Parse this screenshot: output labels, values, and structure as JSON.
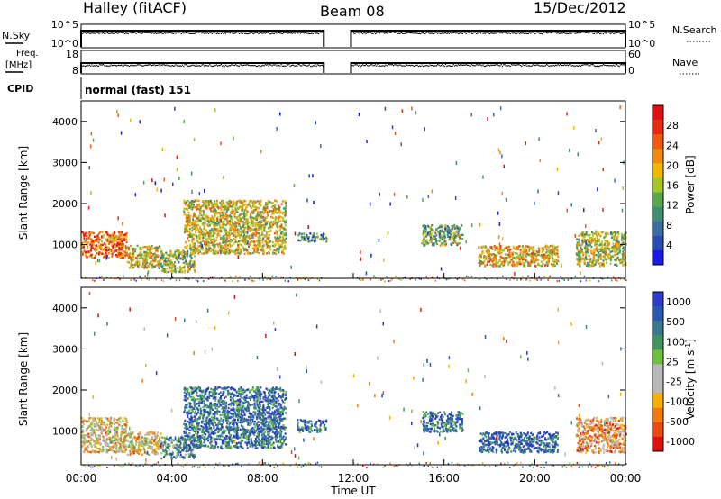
{
  "header": {
    "station": "Halley (fitACF)",
    "beam": "Beam 08",
    "date": "15/Dec/2012"
  },
  "strip_labels": {
    "nsky": "N.Sky",
    "nsky_ticks": [
      "10^5",
      "10^0"
    ],
    "nsearch": "N.Search",
    "nsearch_ticks": [
      "10^5",
      "10^0"
    ],
    "freq_line1": "Freq.",
    "freq_line2": "[MHz]",
    "freq_ticks": [
      "18",
      "8"
    ],
    "nave": "Nave",
    "nave_ticks": [
      "60",
      "0"
    ],
    "cpid": "CPID",
    "cpid_value": "normal (fast) 151"
  },
  "colors": {
    "power": [
      "#1a1ae6",
      "#2a4bb0",
      "#3a6ea0",
      "#3f8f70",
      "#5aa84a",
      "#a8c52a",
      "#f0b800",
      "#f08a10",
      "#f05a10",
      "#e82a10",
      "#e01010"
    ],
    "velocity": [
      "#2a3cc8",
      "#2a5ab0",
      "#3a7890",
      "#3f9560",
      "#6cc03a",
      "#b8b8b8",
      "#b8b8b8",
      "#f5b000",
      "#f07a10",
      "#e84a10",
      "#e01010"
    ]
  },
  "chart_data": [
    {
      "type": "heatmap",
      "panel": "power",
      "ylabel": "Slant Range [km]",
      "yticks": [
        1000,
        2000,
        3000,
        4000
      ],
      "ylim": [
        180,
        4500
      ],
      "xlim_hours": [
        0,
        24
      ],
      "colorbar_label": "Power [dB]",
      "colorbar_ticks": [
        "4",
        "8",
        "12",
        "16",
        "20",
        "24",
        "28"
      ],
      "colorbar_range": [
        0,
        32
      ],
      "features": [
        {
          "t0": 0.0,
          "t1": 2.0,
          "r0": 700,
          "r1": 1350,
          "level": 0.75
        },
        {
          "t0": 2.0,
          "t1": 3.5,
          "r0": 450,
          "r1": 1000,
          "level": 0.55
        },
        {
          "t0": 3.5,
          "t1": 5.0,
          "r0": 350,
          "r1": 900,
          "level": 0.45
        },
        {
          "t0": 4.5,
          "t1": 9.0,
          "r0": 800,
          "r1": 2100,
          "level": 0.55
        },
        {
          "t0": 9.5,
          "t1": 10.8,
          "r0": 1100,
          "r1": 1300,
          "level": 0.25
        },
        {
          "t0": 15.0,
          "t1": 16.8,
          "r0": 1000,
          "r1": 1500,
          "level": 0.4
        },
        {
          "t0": 17.5,
          "t1": 21.0,
          "r0": 500,
          "r1": 1000,
          "level": 0.6
        },
        {
          "t0": 21.8,
          "t1": 24.0,
          "r0": 500,
          "r1": 1350,
          "level": 0.5
        }
      ]
    },
    {
      "type": "heatmap",
      "panel": "velocity",
      "ylabel": "Slant Range [km]",
      "yticks": [
        1000,
        2000,
        3000,
        4000
      ],
      "ylim": [
        180,
        4500
      ],
      "xlim_hours": [
        0,
        24
      ],
      "colorbar_label": "Velocity [m s^-1]",
      "colorbar_ticks": [
        "1000",
        "500",
        "100",
        "25",
        "-25",
        "-100",
        "-500",
        "-1000"
      ],
      "features": [
        {
          "t0": 0.0,
          "t1": 2.0,
          "r0": 500,
          "r1": 1350,
          "level": 0.6
        },
        {
          "t0": 2.0,
          "t1": 3.5,
          "r0": 450,
          "r1": 1000,
          "level": 0.6
        },
        {
          "t0": 3.5,
          "t1": 5.0,
          "r0": 350,
          "r1": 900,
          "level": 0.3
        },
        {
          "t0": 4.5,
          "t1": 9.0,
          "r0": 600,
          "r1": 2100,
          "level": 0.2
        },
        {
          "t0": 9.5,
          "t1": 10.8,
          "r0": 1000,
          "r1": 1300,
          "level": 0.2
        },
        {
          "t0": 15.0,
          "t1": 16.8,
          "r0": 1000,
          "r1": 1500,
          "level": 0.2
        },
        {
          "t0": 17.5,
          "t1": 21.0,
          "r0": 500,
          "r1": 1000,
          "level": 0.15
        },
        {
          "t0": 21.8,
          "t1": 24.0,
          "r0": 500,
          "r1": 1350,
          "level": 0.7
        }
      ]
    }
  ],
  "x_axis": {
    "tick_labels": [
      "00:00",
      "04:00",
      "08:00",
      "12:00",
      "16:00",
      "20:00",
      "00:00"
    ],
    "tick_hours": [
      0,
      4,
      8,
      12,
      16,
      20,
      24
    ],
    "label": "Time UT"
  },
  "data_gaps_hours": [
    [
      10.8,
      11.8
    ]
  ]
}
